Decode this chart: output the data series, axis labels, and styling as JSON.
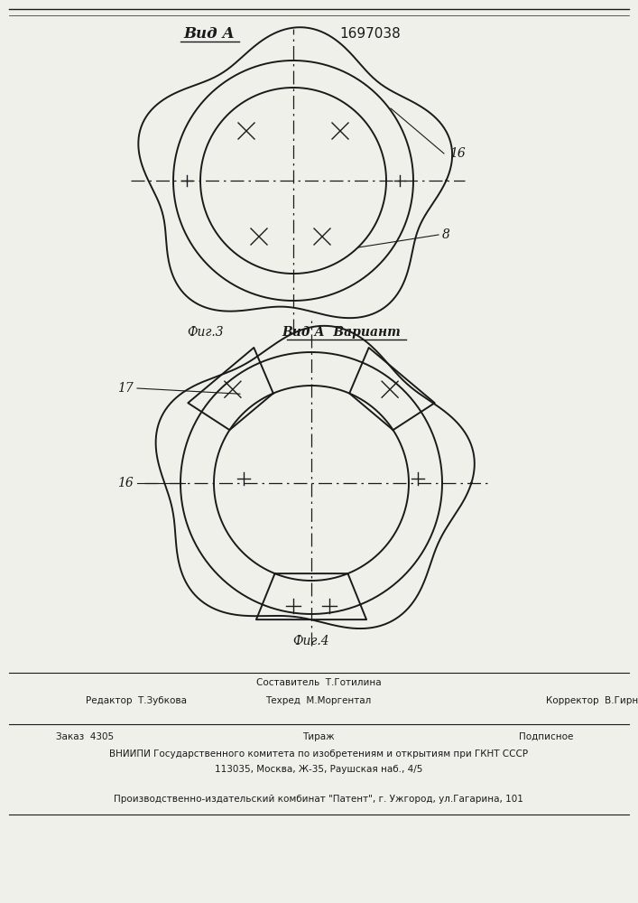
{
  "title": "1697038",
  "fig1_label": "Вид А",
  "fig1_caption": "Фиг.3",
  "fig2_label": "Вид А  Вариант",
  "fig2_caption": "Фиг.4",
  "label_16_fig1": "16",
  "label_8_fig1": "8",
  "label_17_fig2": "17",
  "label_16_fig2": "16",
  "footer_left": "Редактор  Т.Зубкова",
  "footer_center1": "Составитель  Т.Готилина",
  "footer_center2": "Техред  М.Моргентал",
  "footer_right": "Корректор  В.Гирняк",
  "footer_order": "Заказ  4305",
  "footer_tirazh": "Тираж",
  "footer_podp": "Подписное",
  "footer_vniipи": "ВНИИПИ Государственного комитета по изобретениям и открытиям при ГКНТ СССР",
  "footer_addr": "113035, Москва, Ж-35, Раушская наб., 4/5",
  "footer_patent": "Производственно-издательский комбинат \"Патент\", г. Ужгород, ул.Гагарина, 101",
  "bg_color": "#f0f0eb",
  "line_color": "#1a1a1a"
}
